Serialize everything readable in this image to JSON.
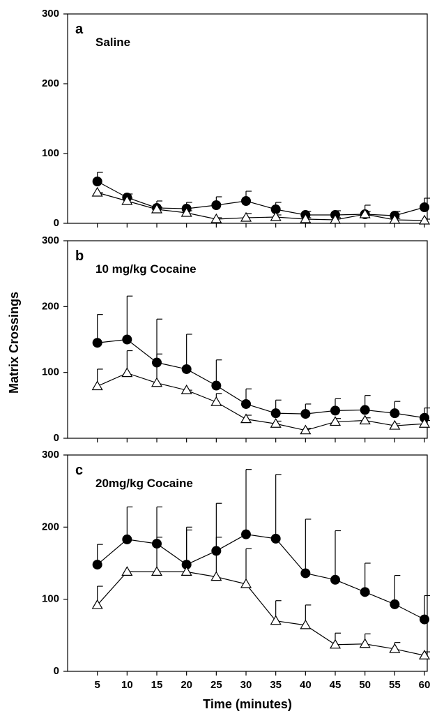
{
  "chart_data": [
    {
      "type": "line",
      "label": "a",
      "title": "Saline",
      "x": [
        5,
        10,
        15,
        20,
        25,
        30,
        35,
        40,
        45,
        50,
        55,
        60
      ],
      "xlim": [
        0,
        60
      ],
      "ylim": [
        0,
        300
      ],
      "xticks": [
        5,
        10,
        15,
        20,
        25,
        30,
        35,
        40,
        45,
        50,
        55,
        60
      ],
      "yticks": [
        0,
        100,
        200,
        300
      ],
      "series": [
        {
          "color": "#000000",
          "marker": "circle",
          "values": [
            60,
            37,
            22,
            21,
            26,
            32,
            20,
            12,
            12,
            13,
            11,
            23
          ],
          "errors": [
            13,
            5,
            10,
            9,
            12,
            14,
            10,
            5,
            6,
            13,
            6,
            13
          ]
        },
        {
          "color": "#000000",
          "marker": "triangle",
          "values": [
            44,
            32,
            20,
            15,
            6,
            8,
            9,
            6,
            5,
            13,
            5,
            4
          ],
          "errors": [
            0,
            4,
            3,
            3,
            2,
            6,
            3,
            2,
            3,
            4,
            2,
            2
          ]
        }
      ]
    },
    {
      "type": "line",
      "label": "b",
      "title": "10 mg/kg Cocaine",
      "y_label": "Matrix Crossings",
      "x": [
        5,
        10,
        15,
        20,
        25,
        30,
        35,
        40,
        45,
        50,
        55,
        60
      ],
      "xlim": [
        0,
        60
      ],
      "ylim": [
        0,
        300
      ],
      "xticks": [
        5,
        10,
        15,
        20,
        25,
        30,
        35,
        40,
        45,
        50,
        55,
        60
      ],
      "yticks": [
        0,
        100,
        200,
        300
      ],
      "series": [
        {
          "color": "#000000",
          "marker": "circle",
          "values": [
            145,
            150,
            115,
            105,
            80,
            52,
            38,
            37,
            42,
            43,
            38,
            31
          ],
          "errors": [
            43,
            66,
            66,
            53,
            39,
            23,
            20,
            15,
            18,
            22,
            18,
            15
          ]
        },
        {
          "color": "#000000",
          "marker": "triangle",
          "values": [
            79,
            99,
            84,
            73,
            55,
            29,
            22,
            12,
            25,
            27,
            19,
            22
          ],
          "errors": [
            26,
            34,
            44,
            0,
            13,
            6,
            4,
            3,
            5,
            4,
            3,
            5
          ]
        }
      ]
    },
    {
      "type": "line",
      "label": "c",
      "title": "20mg/kg Cocaine",
      "x_label": "Time (minutes)",
      "x": [
        5,
        10,
        15,
        20,
        25,
        30,
        35,
        40,
        45,
        50,
        55,
        60
      ],
      "xlim": [
        0,
        60
      ],
      "ylim": [
        0,
        300
      ],
      "xticks": [
        5,
        10,
        15,
        20,
        25,
        30,
        35,
        40,
        45,
        50,
        55,
        60
      ],
      "yticks": [
        0,
        100,
        200,
        300
      ],
      "series": [
        {
          "color": "#000000",
          "marker": "circle",
          "values": [
            148,
            183,
            177,
            148,
            167,
            190,
            184,
            136,
            127,
            110,
            93,
            72
          ],
          "errors": [
            28,
            45,
            51,
            52,
            66,
            90,
            89,
            75,
            68,
            40,
            40,
            33
          ]
        },
        {
          "color": "#000000",
          "marker": "triangle",
          "values": [
            92,
            138,
            138,
            138,
            131,
            121,
            70,
            64,
            37,
            38,
            31,
            22
          ],
          "errors": [
            26,
            0,
            48,
            58,
            55,
            49,
            28,
            28,
            16,
            14,
            9,
            5
          ]
        }
      ]
    }
  ]
}
